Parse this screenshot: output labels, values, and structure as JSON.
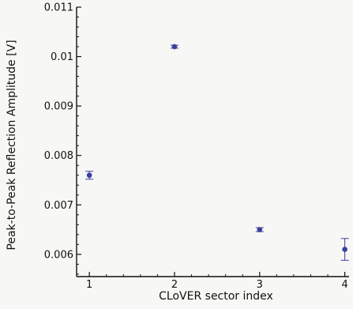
{
  "chart_data": {
    "type": "scatter",
    "xlabel": "CLoVER sector index",
    "ylabel": "Peak-to-Peak Reflection Amplitude [V]",
    "xlim": [
      0.85,
      4.05
    ],
    "ylim": [
      0.00555,
      0.011
    ],
    "x_ticks": [
      1,
      2,
      3,
      4
    ],
    "x_tick_labels": [
      "1",
      "2",
      "3",
      "4"
    ],
    "y_ticks": [
      0.006,
      0.007,
      0.008,
      0.009,
      0.01,
      0.011
    ],
    "y_tick_labels": [
      "0.006",
      "0.007",
      "0.008",
      "0.009",
      "0.01",
      "0.011"
    ],
    "grid": false,
    "marker_color": "#3b3f9e",
    "series": [
      {
        "x": [
          1,
          2,
          3,
          4
        ],
        "y": [
          0.0076,
          0.0102,
          0.0065,
          0.0061
        ],
        "yerr": [
          8e-05,
          3e-05,
          4e-05,
          0.00022
        ]
      }
    ]
  }
}
